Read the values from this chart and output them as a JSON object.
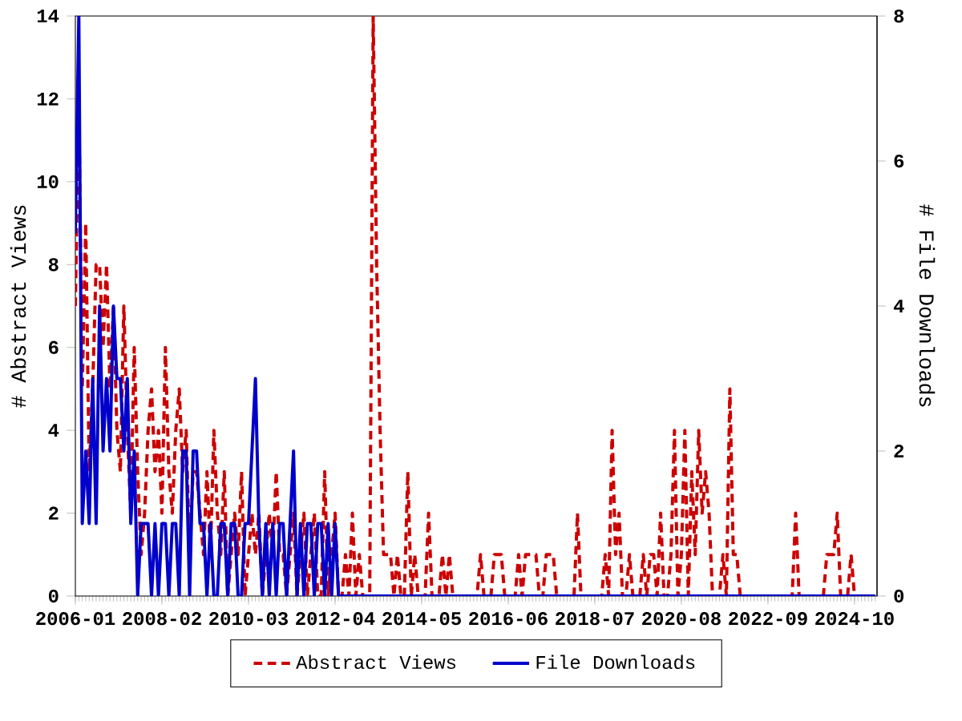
{
  "chart_data": {
    "type": "line",
    "x": [
      "2006-01",
      "2006-02",
      "2006-03",
      "2006-04",
      "2006-05",
      "2006-06",
      "2006-07",
      "2006-08",
      "2006-09",
      "2006-10",
      "2006-11",
      "2006-12",
      "2007-01",
      "2007-02",
      "2007-03",
      "2007-04",
      "2007-05",
      "2007-06",
      "2007-07",
      "2007-08",
      "2007-09",
      "2007-10",
      "2007-11",
      "2007-12",
      "2008-01",
      "2008-02",
      "2008-03",
      "2008-04",
      "2008-05",
      "2008-06",
      "2008-07",
      "2008-08",
      "2008-09",
      "2008-10",
      "2008-11",
      "2008-12",
      "2009-01",
      "2009-02",
      "2009-03",
      "2009-04",
      "2009-05",
      "2009-06",
      "2009-07",
      "2009-08",
      "2009-09",
      "2009-10",
      "2009-11",
      "2009-12",
      "2010-01",
      "2010-02",
      "2010-03",
      "2010-04",
      "2010-05",
      "2010-06",
      "2010-07",
      "2010-08",
      "2010-09",
      "2010-10",
      "2010-11",
      "2010-12",
      "2011-01",
      "2011-02",
      "2011-03",
      "2011-04",
      "2011-05",
      "2011-06",
      "2011-07",
      "2011-08",
      "2011-09",
      "2011-10",
      "2011-11",
      "2011-12",
      "2012-01",
      "2012-02",
      "2012-03",
      "2012-04",
      "2012-05",
      "2012-06",
      "2012-07",
      "2012-08",
      "2012-09",
      "2012-10",
      "2012-11",
      "2012-12",
      "2013-01",
      "2013-02",
      "2013-03",
      "2013-04",
      "2013-05",
      "2013-06",
      "2013-07",
      "2013-08",
      "2013-09",
      "2013-10",
      "2013-11",
      "2013-12",
      "2014-01",
      "2014-02",
      "2014-03",
      "2014-04",
      "2014-05",
      "2014-06",
      "2014-07",
      "2014-08",
      "2014-09",
      "2014-10",
      "2014-11",
      "2014-12",
      "2015-01",
      "2015-02",
      "2015-03",
      "2015-04",
      "2015-05",
      "2015-06",
      "2015-07",
      "2015-08",
      "2015-09",
      "2015-10",
      "2015-11",
      "2015-12",
      "2016-01",
      "2016-02",
      "2016-03",
      "2016-04",
      "2016-05",
      "2016-06",
      "2016-07",
      "2016-08",
      "2016-09",
      "2016-10",
      "2016-11",
      "2016-12",
      "2017-01",
      "2017-02",
      "2017-03",
      "2017-04",
      "2017-05",
      "2017-06",
      "2017-07",
      "2017-08",
      "2017-09",
      "2017-10",
      "2017-11",
      "2017-12",
      "2018-01",
      "2018-02",
      "2018-03",
      "2018-04",
      "2018-05",
      "2018-06",
      "2018-07",
      "2018-08",
      "2018-09",
      "2018-10",
      "2018-11",
      "2018-12",
      "2019-01",
      "2019-02",
      "2019-03",
      "2019-04",
      "2019-05",
      "2019-06",
      "2019-07",
      "2019-08",
      "2019-09",
      "2019-10",
      "2019-11",
      "2019-12",
      "2020-01",
      "2020-02",
      "2020-03",
      "2020-04",
      "2020-05",
      "2020-06",
      "2020-07",
      "2020-08",
      "2020-09",
      "2020-10",
      "2020-11",
      "2020-12",
      "2021-01",
      "2021-02",
      "2021-03",
      "2021-04",
      "2021-05",
      "2021-06",
      "2021-07",
      "2021-08",
      "2021-09",
      "2021-10",
      "2021-11",
      "2021-12",
      "2022-01",
      "2022-02",
      "2022-03",
      "2022-04",
      "2022-05",
      "2022-06",
      "2022-07",
      "2022-08",
      "2022-09",
      "2022-10",
      "2022-11",
      "2022-12",
      "2023-01",
      "2023-02",
      "2023-03",
      "2023-04",
      "2023-05",
      "2023-06",
      "2023-07",
      "2023-08",
      "2023-09",
      "2023-10",
      "2023-11",
      "2023-12",
      "2024-01",
      "2024-02",
      "2024-03",
      "2024-04",
      "2024-05",
      "2024-06",
      "2024-07",
      "2024-08",
      "2024-09",
      "2024-10",
      "2024-11",
      "2024-12",
      "2025-01",
      "2025-02",
      "2025-03",
      "2025-04"
    ],
    "series": [
      {
        "name": "Abstract Views",
        "color": "#cc0000",
        "line_style": "dashed",
        "values": [
          7,
          12,
          5,
          9,
          3,
          5,
          8,
          8,
          6,
          8,
          5,
          7,
          4,
          3,
          7,
          4,
          2,
          6,
          3,
          1,
          2,
          4,
          5,
          3,
          4,
          2,
          6,
          3,
          2,
          4,
          5,
          3,
          4,
          1,
          3,
          3,
          2,
          1,
          3,
          1,
          4,
          2,
          1,
          3,
          0,
          1,
          2,
          1,
          3,
          0,
          1,
          2,
          1,
          2,
          0,
          1,
          2,
          1,
          3,
          1,
          1,
          0,
          1,
          2,
          0,
          1,
          2,
          0,
          1,
          2,
          0,
          0,
          3,
          0,
          1,
          2,
          0,
          0,
          1,
          0,
          2,
          0,
          1,
          0,
          0,
          0,
          14,
          8,
          4,
          1,
          1,
          1,
          0,
          1,
          0,
          0,
          3,
          0,
          1,
          0,
          0,
          0,
          2,
          0,
          0,
          0,
          1,
          0,
          1,
          0,
          0,
          0,
          0,
          0,
          0,
          0,
          0,
          1,
          0,
          0,
          0,
          1,
          1,
          1,
          0,
          0,
          0,
          0,
          1,
          0,
          1,
          1,
          1,
          1,
          0,
          0,
          1,
          1,
          1,
          0,
          0,
          0,
          0,
          0,
          0,
          2,
          0,
          0,
          0,
          0,
          0,
          0,
          0,
          1,
          0,
          4,
          1,
          2,
          0,
          0,
          1,
          0,
          0,
          0,
          1,
          0,
          1,
          1,
          0,
          2,
          0,
          0,
          1,
          4,
          0,
          1,
          4,
          0,
          3,
          1,
          4,
          2,
          3,
          2,
          0,
          0,
          0,
          1,
          0,
          5,
          1,
          1,
          0,
          0,
          0,
          0,
          0,
          0,
          0,
          0,
          0,
          0,
          0,
          0,
          0,
          0,
          0,
          0,
          2,
          0,
          0,
          0,
          0,
          0,
          0,
          0,
          0,
          1,
          1,
          1,
          2,
          0,
          0,
          0,
          1,
          0,
          0,
          0,
          0,
          0,
          null,
          null
        ]
      },
      {
        "name": "File Downloads",
        "color": "#0000cc",
        "line_style": "solid",
        "axis": "y2",
        "values": [
          5,
          8,
          1,
          2,
          1,
          3,
          1,
          4,
          2,
          3,
          2,
          4,
          3,
          3,
          2,
          3,
          1,
          2,
          0,
          1,
          1,
          1,
          0,
          1,
          0,
          1,
          1,
          0,
          1,
          1,
          0,
          2,
          2,
          0,
          2,
          2,
          1,
          1,
          0,
          1,
          0,
          0,
          1,
          1,
          0,
          1,
          1,
          0,
          0,
          1,
          1,
          2,
          3,
          1,
          0,
          1,
          0,
          1,
          0,
          1,
          1,
          0,
          1,
          2,
          0,
          1,
          0,
          1,
          1,
          0,
          1,
          1,
          0,
          1,
          0,
          1,
          0,
          0,
          0,
          0,
          0,
          0,
          0,
          0,
          0,
          0,
          0,
          0,
          0,
          0,
          0,
          0,
          0,
          0,
          0,
          0,
          0,
          0,
          0,
          0,
          0,
          0,
          0,
          0,
          0,
          0,
          0,
          0,
          0,
          0,
          0,
          0,
          0,
          0,
          0,
          0,
          0,
          0,
          0,
          0,
          0,
          0,
          0,
          0,
          0,
          0,
          0,
          0,
          0,
          0,
          0,
          0,
          0,
          0,
          0,
          0,
          0,
          0,
          0,
          0,
          0,
          0,
          0,
          0,
          0,
          0,
          0,
          0,
          0,
          0,
          0,
          0,
          0,
          0,
          0,
          0,
          0,
          0,
          0,
          0,
          0,
          0,
          0,
          0,
          0,
          0,
          0,
          0,
          0,
          0,
          0,
          0,
          0,
          0,
          0,
          0,
          0,
          0,
          0,
          0,
          0,
          0,
          0,
          0,
          0,
          0,
          0,
          0,
          0,
          0,
          0,
          0,
          0,
          0,
          0,
          0,
          0,
          0,
          0,
          0,
          0,
          0,
          0,
          0,
          0,
          0,
          0,
          0,
          0,
          0,
          0,
          0,
          0,
          0,
          0,
          0,
          0,
          0,
          0,
          0,
          0,
          0,
          0,
          0,
          0,
          0,
          0,
          0,
          0,
          0,
          0,
          0
        ]
      }
    ],
    "ylabel": "# Abstract Views",
    "y2label": "# File Downloads",
    "xlim": [
      "2006-01",
      "2025-04"
    ],
    "xticks": [
      "2006-01",
      "2008-02",
      "2010-03",
      "2012-04",
      "2014-05",
      "2016-06",
      "2018-07",
      "2020-08",
      "2022-09",
      "2024-10"
    ],
    "ylim": [
      0,
      14
    ],
    "yticks": [
      0,
      2,
      4,
      6,
      8,
      10,
      12,
      14
    ],
    "y2lim": [
      0,
      8
    ],
    "y2ticks": [
      0,
      2,
      4,
      6,
      8
    ],
    "legend": "bottom",
    "grid": false,
    "marker": "none"
  }
}
